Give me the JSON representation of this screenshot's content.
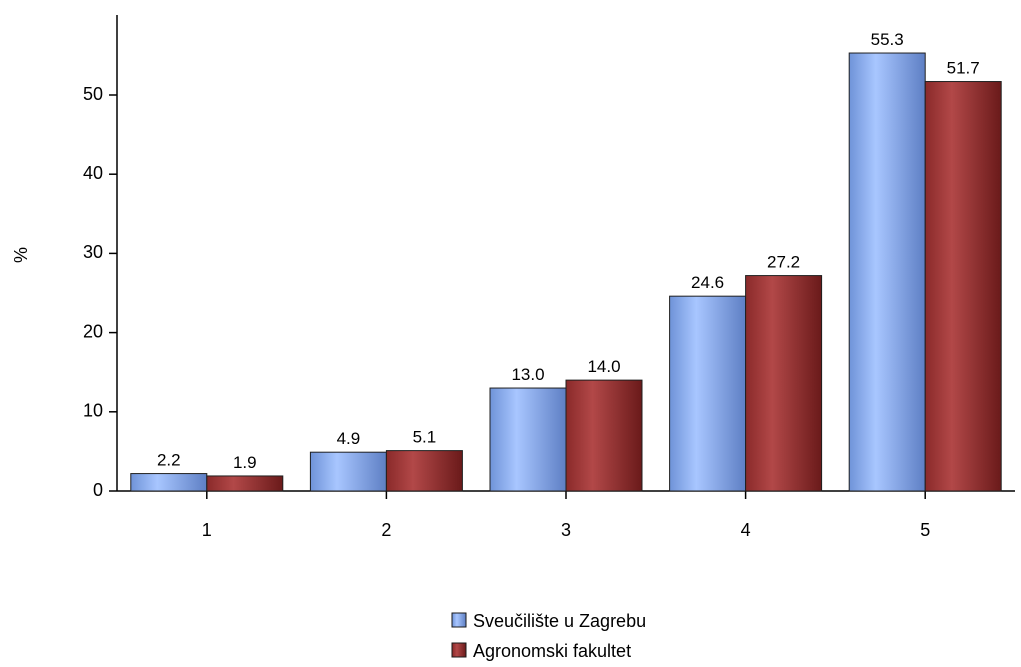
{
  "chart_data": {
    "type": "bar",
    "categories": [
      "1",
      "2",
      "3",
      "4",
      "5"
    ],
    "series": [
      {
        "name": "Sveučilište u Zagrebu",
        "values": [
          2.2,
          4.9,
          13.0,
          24.6,
          55.3
        ],
        "color": "#8fb4f5"
      },
      {
        "name": "Agronomski fakultet",
        "values": [
          1.9,
          5.1,
          14.0,
          27.2,
          51.7
        ],
        "color": "#9e3a3a"
      }
    ],
    "data_labels": [
      [
        "2.2",
        "4.9",
        "13.0",
        "24.6",
        "55.3"
      ],
      [
        "1.9",
        "5.1",
        "14.0",
        "27.2",
        "51.7"
      ]
    ],
    "title": "",
    "xlabel": "",
    "ylabel": "%",
    "ylim": [
      0,
      60
    ],
    "yticks": [
      0,
      10,
      20,
      30,
      40,
      50
    ],
    "grid": false,
    "legend_position": "bottom-center"
  }
}
